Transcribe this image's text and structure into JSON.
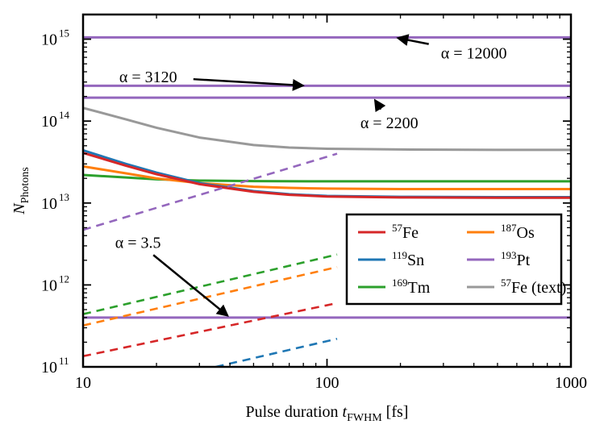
{
  "chart_data": {
    "type": "line",
    "x_scale": "log",
    "y_scale": "log",
    "xlim": [
      10,
      1000
    ],
    "ylim": [
      100000000000.0,
      2000000000000000.0
    ],
    "xlabel": {
      "main": "Pulse duration",
      "var": "t",
      "sub": "FWHM",
      "unit": "[fs]"
    },
    "ylabel": {
      "var": "N",
      "sub": "Photons"
    },
    "x_ticks": [
      {
        "value": 10,
        "label": "10"
      },
      {
        "value": 100,
        "label": "100"
      },
      {
        "value": 1000,
        "label": "1000"
      }
    ],
    "y_ticks": [
      {
        "value": 100000000000.0,
        "base": "10",
        "exp": "11"
      },
      {
        "value": 1000000000000.0,
        "base": "10",
        "exp": "12"
      },
      {
        "value": 10000000000000.0,
        "base": "10",
        "exp": "13"
      },
      {
        "value": 100000000000000.0,
        "base": "10",
        "exp": "14"
      },
      {
        "value": 1000000000000000.0,
        "base": "10",
        "exp": "15"
      }
    ],
    "legend_position": "center-right",
    "legend": [
      {
        "sup": "57",
        "name": "Fe",
        "color": "#d62728"
      },
      {
        "sup": "187",
        "name": "Os",
        "color": "#ff7f0e"
      },
      {
        "sup": "119",
        "name": "Sn",
        "color": "#1f77b4"
      },
      {
        "sup": "193",
        "name": "Pt",
        "color": "#9467bd"
      },
      {
        "sup": "169",
        "name": "Tm",
        "color": "#2ca02c"
      },
      {
        "sup": "57",
        "name": "Fe (text)",
        "color": "#999999"
      }
    ],
    "series": [
      {
        "key": "fe57_text",
        "color": "#999999",
        "dashed": false,
        "x": [
          10,
          15,
          20,
          30,
          50,
          70,
          100,
          200,
          500,
          1000
        ],
        "y": [
          145000000000000.0,
          105000000000000.0,
          83000000000000.0,
          63000000000000.0,
          51000000000000.0,
          47500000000000.0,
          46000000000000.0,
          45000000000000.0,
          44500000000000.0,
          44500000000000.0
        ]
      },
      {
        "key": "pt193_a12000",
        "color": "#9467bd",
        "dashed": false,
        "x": [
          10,
          1000
        ],
        "y": [
          1050000000000000.0,
          1050000000000000.0
        ]
      },
      {
        "key": "pt193_a3120",
        "color": "#9467bd",
        "dashed": false,
        "x": [
          10,
          1000
        ],
        "y": [
          270000000000000.0,
          270000000000000.0
        ]
      },
      {
        "key": "pt193_a2200",
        "color": "#9467bd",
        "dashed": false,
        "x": [
          10,
          1000
        ],
        "y": [
          193000000000000.0,
          193000000000000.0
        ]
      },
      {
        "key": "pt193_a3.5",
        "color": "#9467bd",
        "dashed": false,
        "x": [
          10,
          1000
        ],
        "y": [
          400000000000.0,
          400000000000.0
        ]
      },
      {
        "key": "tm169",
        "color": "#2ca02c",
        "dashed": false,
        "x": [
          10,
          15,
          20,
          30,
          50,
          100,
          1000
        ],
        "y": [
          22000000000000.0,
          20500000000000.0,
          19500000000000.0,
          18800000000000.0,
          18500000000000.0,
          18400000000000.0,
          18400000000000.0
        ]
      },
      {
        "key": "os187",
        "color": "#ff7f0e",
        "dashed": false,
        "x": [
          10,
          15,
          20,
          30,
          50,
          70,
          100,
          200,
          1000
        ],
        "y": [
          28000000000000.0,
          23000000000000.0,
          20000000000000.0,
          17500000000000.0,
          15800000000000.0,
          15300000000000.0,
          15000000000000.0,
          14800000000000.0,
          14800000000000.0
        ]
      },
      {
        "key": "sn119",
        "color": "#1f77b4",
        "dashed": false,
        "x": [
          10,
          15,
          20,
          30,
          50,
          70,
          100,
          200,
          500,
          1000
        ],
        "y": [
          44000000000000.0,
          30000000000000.0,
          23500000000000.0,
          17500000000000.0,
          14000000000000.0,
          12800000000000.0,
          12200000000000.0,
          11900000000000.0,
          11800000000000.0,
          11800000000000.0
        ]
      },
      {
        "key": "fe57",
        "color": "#d62728",
        "dashed": false,
        "x": [
          10,
          15,
          20,
          30,
          50,
          70,
          100,
          200,
          500,
          1000
        ],
        "y": [
          41000000000000.0,
          28500000000000.0,
          22500000000000.0,
          17000000000000.0,
          13700000000000.0,
          12600000000000.0,
          12000000000000.0,
          11700000000000.0,
          11600000000000.0,
          11600000000000.0
        ]
      },
      {
        "key": "pt193_dashed",
        "color": "#9467bd",
        "dashed": true,
        "x": [
          10,
          110
        ],
        "y": [
          4700000000000.0,
          40000000000000.0
        ]
      },
      {
        "key": "tm169_dashed",
        "color": "#2ca02c",
        "dashed": true,
        "x": [
          10,
          110
        ],
        "y": [
          440000000000.0,
          2350000000000.0
        ]
      },
      {
        "key": "os187_dashed",
        "color": "#ff7f0e",
        "dashed": true,
        "x": [
          10,
          110
        ],
        "y": [
          320000000000.0,
          1650000000000.0
        ]
      },
      {
        "key": "fe57_dashed",
        "color": "#d62728",
        "dashed": true,
        "x": [
          10,
          110
        ],
        "y": [
          135000000000.0,
          600000000000.0
        ]
      },
      {
        "key": "sn119_dashed",
        "color": "#1f77b4",
        "dashed": true,
        "x": [
          35,
          110
        ],
        "y": [
          100000000000.0,
          220000000000.0
        ]
      }
    ],
    "annotations": [
      {
        "label": "α = 12000",
        "text_x": 400,
        "text_y": 680000000000000.0,
        "tip_x": 190,
        "tip_y": 1050000000000000.0
      },
      {
        "label": "α = 3120",
        "text_x": 18.5,
        "text_y": 350000000000000.0,
        "tip_x": 82,
        "tip_y": 270000000000000.0
      },
      {
        "label": "α = 2200",
        "text_x": 180,
        "text_y": 96000000000000.0,
        "tip_x": 155,
        "tip_y": 193000000000000.0
      },
      {
        "label": "α = 3.5",
        "text_x": 16.8,
        "text_y": 3300000000000.0,
        "tip_x": 40,
        "tip_y": 400000000000.0
      }
    ]
  }
}
